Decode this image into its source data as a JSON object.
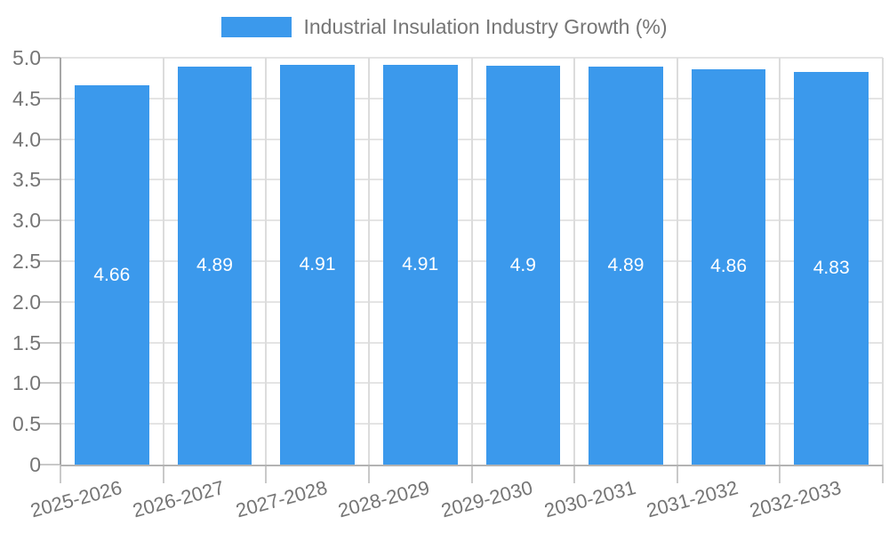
{
  "chart_data": {
    "type": "bar",
    "title": "Industrial Insulation Industry Growth (%)",
    "categories": [
      "2025-2026",
      "2026-2027",
      "2027-2028",
      "2028-2029",
      "2029-2030",
      "2030-2031",
      "2031-2032",
      "2032-2033"
    ],
    "series": [
      {
        "name": "Industrial Insulation Industry Growth (%)",
        "values": [
          4.66,
          4.89,
          4.91,
          4.91,
          4.9,
          4.89,
          4.86,
          4.83
        ],
        "value_labels": [
          "4.66",
          "4.89",
          "4.91",
          "4.91",
          "4.9",
          "4.89",
          "4.86",
          "4.83"
        ]
      }
    ],
    "xlabel": "",
    "ylabel": "",
    "ylim": [
      0,
      5
    ],
    "ytick_step": 0.5,
    "ytick_labels": [
      "0",
      "0.5",
      "1.0",
      "1.5",
      "2.0",
      "2.5",
      "3.0",
      "3.5",
      "4.0",
      "4.5",
      "5.0"
    ],
    "grid": true,
    "legend_position": "top",
    "colors": {
      "bar": "#3b99ec",
      "bar_value_text": "#ffffff",
      "grid_h": "#e4e4e4",
      "grid_v": "#dcdcdc",
      "axis_y": "#a6a6a6",
      "axis_x": "#b3b3b3",
      "tick": "#c9c9c9",
      "text": "#757575",
      "background": "#ffffff"
    }
  }
}
